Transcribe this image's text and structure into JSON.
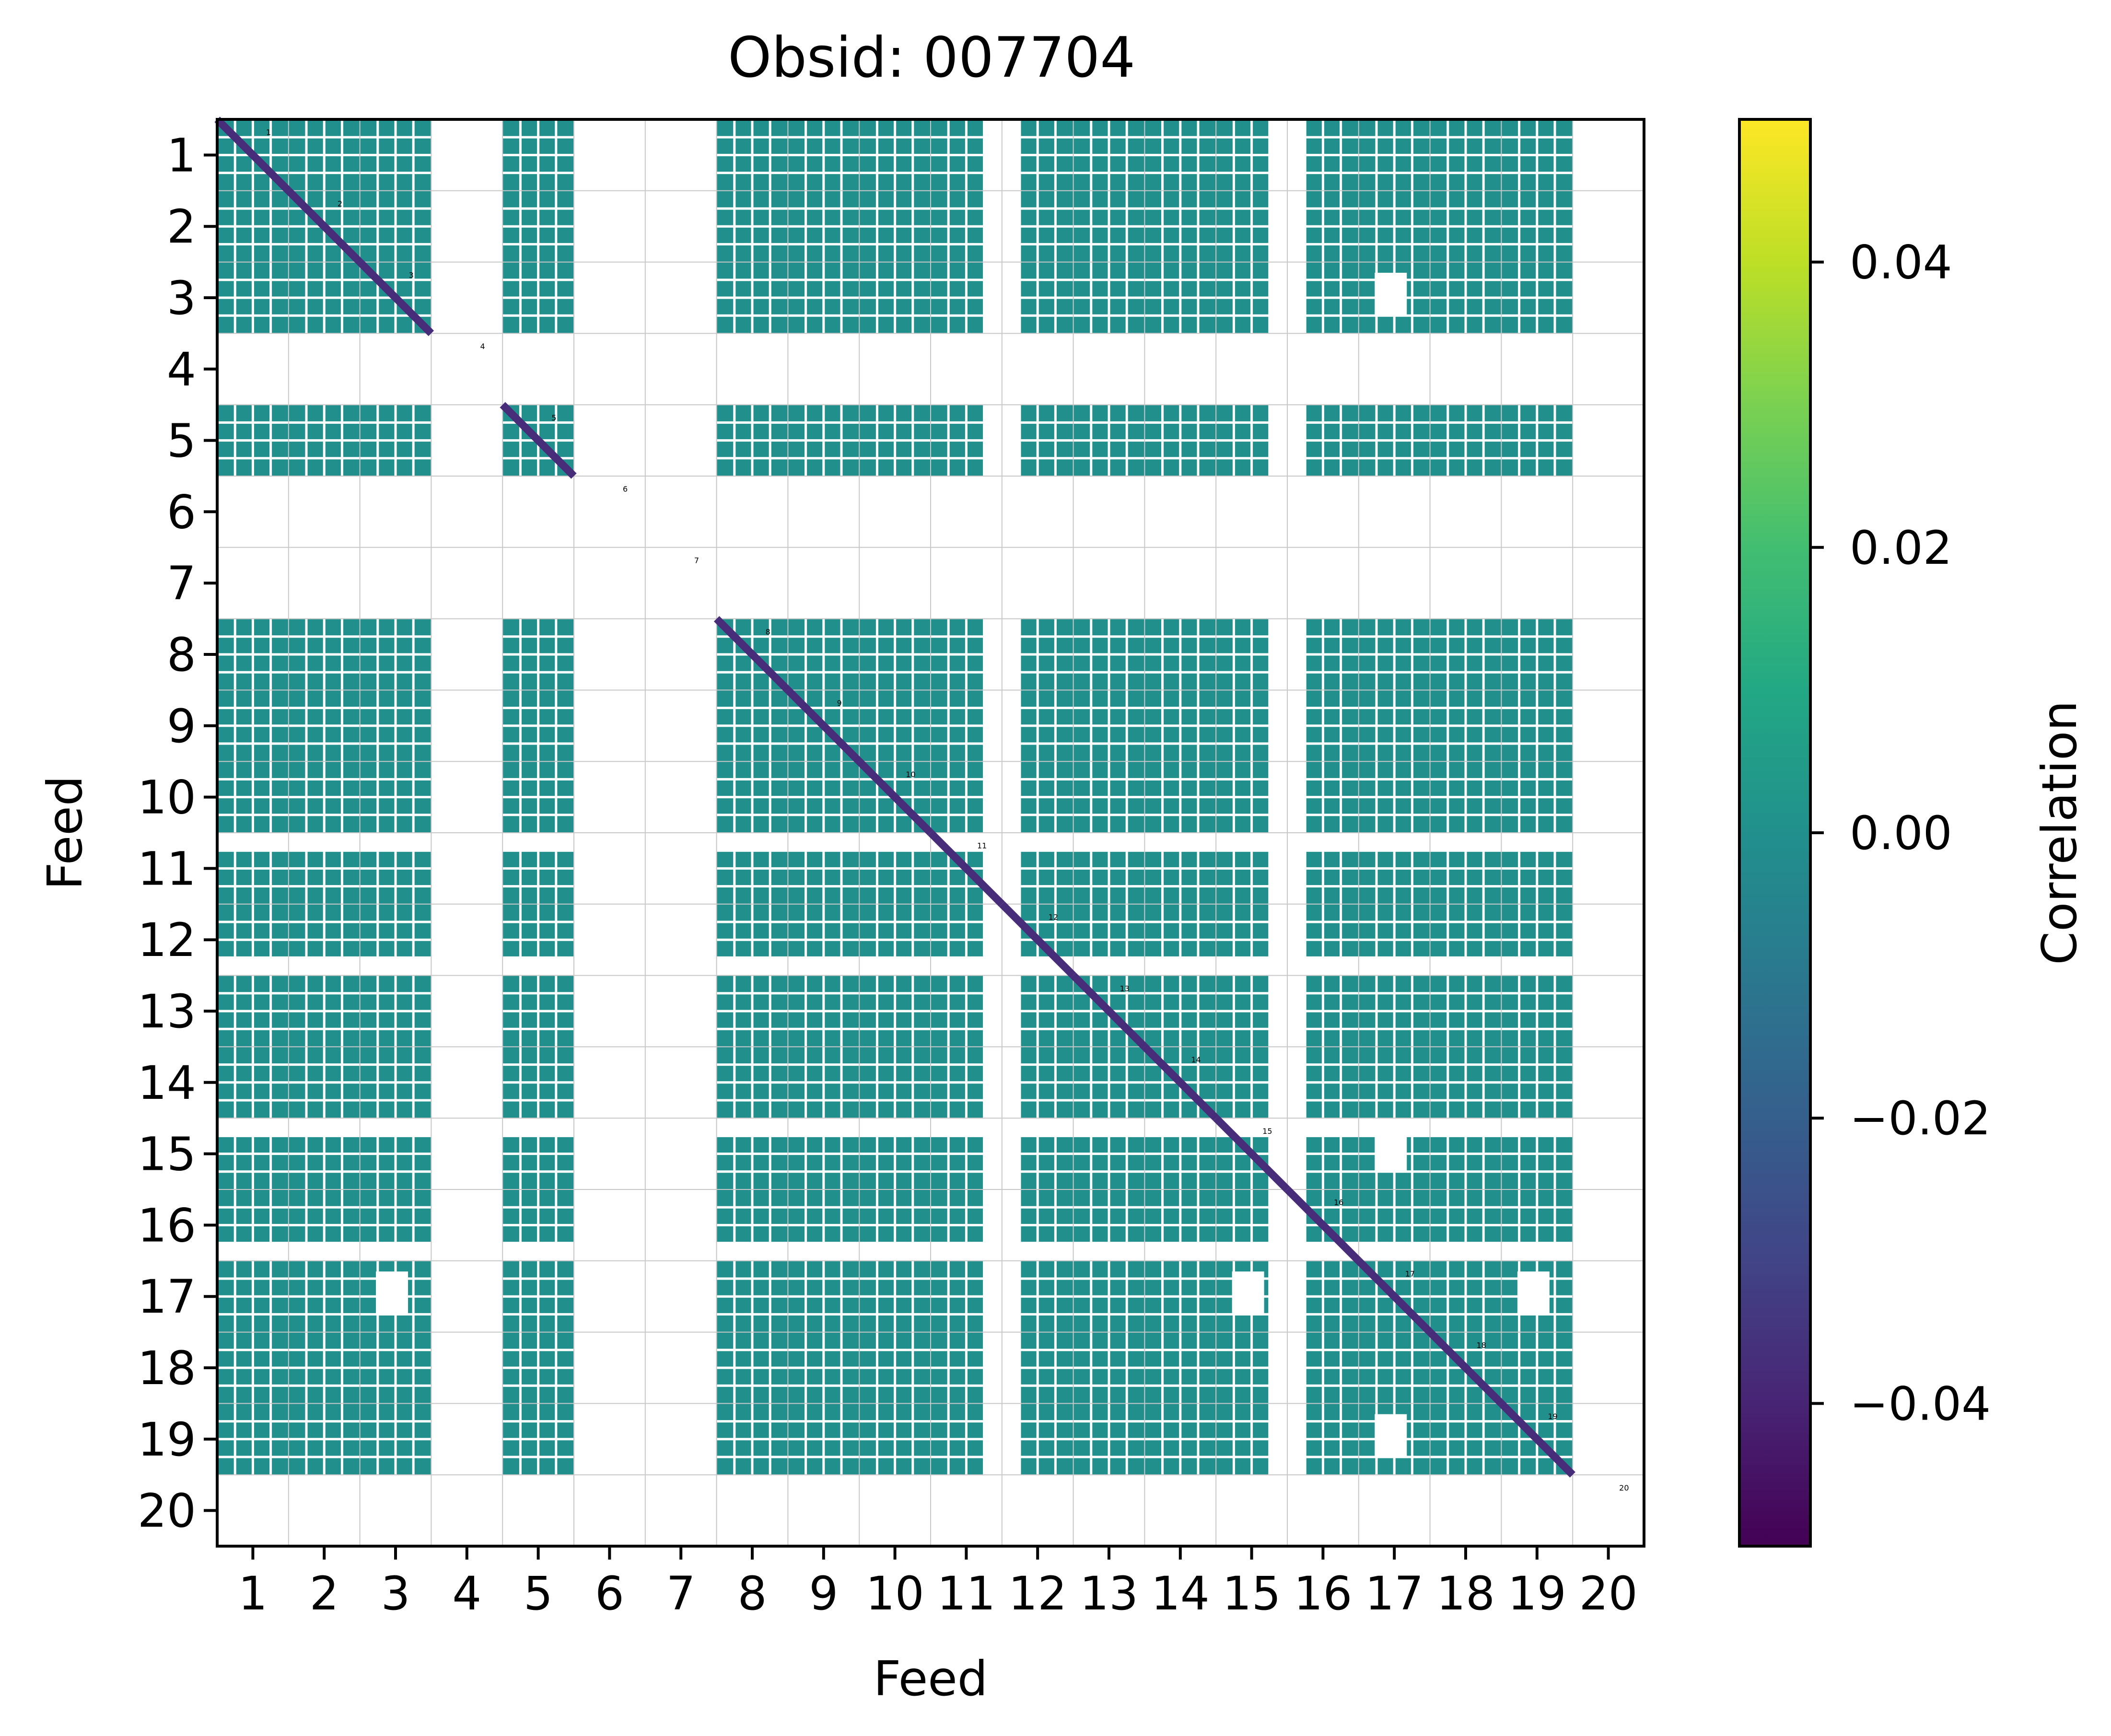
{
  "chart_data": {
    "type": "heatmap",
    "title": "Obsid: 007704",
    "xlabel": "Feed",
    "ylabel": "Feed",
    "x_ticks": [
      "1",
      "2",
      "3",
      "4",
      "5",
      "6",
      "7",
      "8",
      "9",
      "10",
      "11",
      "12",
      "13",
      "14",
      "15",
      "16",
      "17",
      "18",
      "19",
      "20"
    ],
    "y_ticks": [
      "1",
      "2",
      "3",
      "4",
      "5",
      "6",
      "7",
      "8",
      "9",
      "10",
      "11",
      "12",
      "13",
      "14",
      "15",
      "16",
      "17",
      "18",
      "19",
      "20"
    ],
    "feeds": [
      1,
      2,
      3,
      4,
      5,
      6,
      7,
      8,
      9,
      10,
      11,
      12,
      13,
      14,
      15,
      16,
      17,
      18,
      19,
      20
    ],
    "masked_feeds": [
      4,
      6,
      7,
      20
    ],
    "partial_rows": [
      11,
      12,
      15,
      16
    ],
    "partial_columns": [
      11,
      12,
      15,
      16
    ],
    "sub_blocks_per_feed": 4,
    "off_diagonal_value": 0.0,
    "diagonal_value": -0.05,
    "masked_patches": [
      {
        "row": 3,
        "col": 17
      },
      {
        "row": 17,
        "col": 3
      },
      {
        "row": 17,
        "col": 15
      },
      {
        "row": 17,
        "col": 19
      },
      {
        "row": 15,
        "col": 17
      },
      {
        "row": 19,
        "col": 17
      }
    ],
    "diagonal_labels": [
      "1",
      "2",
      "3",
      "4",
      "5",
      "6",
      "7",
      "8",
      "9",
      "10",
      "11",
      "12",
      "13",
      "14",
      "15",
      "16",
      "17",
      "18",
      "19",
      "20"
    ],
    "colorbar": {
      "label": "Correlation",
      "range": [
        -0.05,
        0.05
      ],
      "ticks": [
        0.04,
        0.02,
        0.0,
        -0.02,
        -0.04
      ],
      "tick_labels": [
        "0.04",
        "0.02",
        "0.00",
        "−0.02",
        "−0.04"
      ],
      "colormap": "viridis"
    },
    "colors": {
      "cell": "#21908d",
      "diagonal": "#472c7a",
      "gridline": "#ffffff",
      "feed_grid": "#c8c8c8"
    }
  }
}
